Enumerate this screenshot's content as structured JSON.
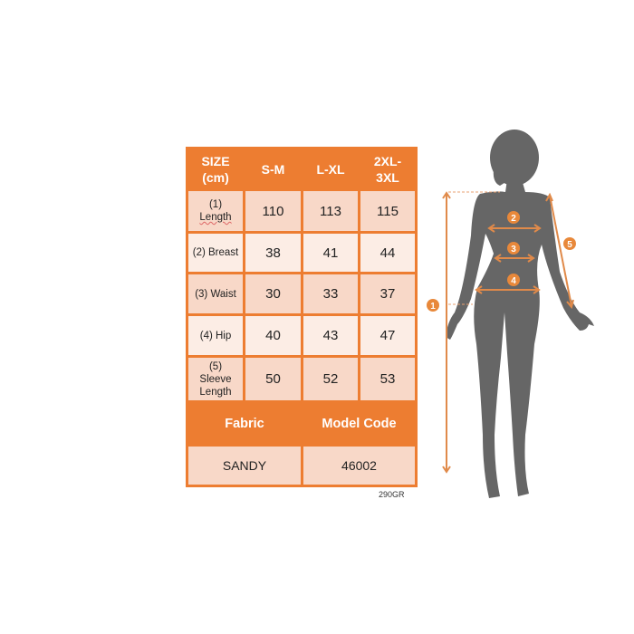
{
  "table": {
    "header": [
      "SIZE (cm)",
      "S-M",
      "L-XL",
      "2XL-3XL"
    ],
    "rows": [
      {
        "label_num": "(1)",
        "label": "Length",
        "values": [
          "110",
          "113",
          "115"
        ]
      },
      {
        "label_num": "(2)",
        "label": "Breast",
        "values": [
          "38",
          "41",
          "44"
        ]
      },
      {
        "label_num": "(3)",
        "label": "Waist",
        "values": [
          "30",
          "33",
          "37"
        ]
      },
      {
        "label_num": "(4)",
        "label": "Hip",
        "values": [
          "40",
          "43",
          "47"
        ]
      },
      {
        "label_num": "(5)",
        "label": "Sleeve Length",
        "values": [
          "50",
          "52",
          "53"
        ]
      }
    ],
    "footer_headers": [
      "Fabric",
      "Model Code"
    ],
    "footer_values": [
      "SANDY",
      "46002"
    ]
  },
  "weight": "290GR",
  "figure": {
    "markers": [
      "1",
      "2",
      "3",
      "4",
      "5"
    ]
  },
  "colors": {
    "accent": "#ED7D31",
    "cell_dark": "#F8D8C8",
    "cell_light": "#FCEDE5",
    "silhouette": "#666666"
  }
}
